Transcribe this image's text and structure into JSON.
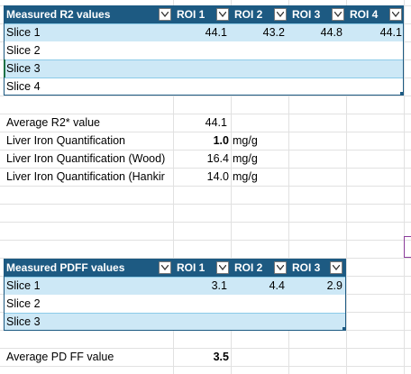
{
  "r2_table": {
    "header": {
      "title": "Measured R2 values",
      "cols": [
        "ROI 1",
        "ROI 2",
        "ROI 3",
        "ROI 4"
      ]
    },
    "rows": [
      {
        "label": "Slice 1",
        "values": [
          "44.1",
          "43.2",
          "44.8",
          "44.1"
        ]
      },
      {
        "label": "Slice 2",
        "values": [
          "",
          "",
          "",
          ""
        ]
      },
      {
        "label": "Slice 3",
        "values": [
          "",
          "",
          "",
          ""
        ]
      },
      {
        "label": "Slice 4",
        "values": [
          "",
          "",
          "",
          ""
        ]
      }
    ]
  },
  "results": [
    {
      "label": "Average R2* value",
      "value": "44.1",
      "unit": ""
    },
    {
      "label": "Liver Iron Quantification",
      "value": "1.0",
      "unit": "mg/g"
    },
    {
      "label": "Liver Iron Quantification (Wood)",
      "value": "16.4",
      "unit": "mg/g"
    },
    {
      "label": "Liver Iron Quantification (Hankir",
      "value": "14.0",
      "unit": "mg/g"
    }
  ],
  "pdff_table": {
    "header": {
      "title": "Measured PDFF values",
      "cols": [
        "ROI 1",
        "ROI 2",
        "ROI 3"
      ]
    },
    "rows": [
      {
        "label": "Slice 1",
        "values": [
          "3.1",
          "4.4",
          "2.9"
        ]
      },
      {
        "label": "Slice 2",
        "values": [
          "",
          "",
          ""
        ]
      },
      {
        "label": "Slice 3",
        "values": [
          "",
          "",
          ""
        ]
      }
    ]
  },
  "pdff_average": {
    "label": "Average PD FF value",
    "value": "3.5"
  },
  "icons": {
    "filter_dropdown": "chevron-down-icon"
  },
  "colors": {
    "header_bg": "#1d5a82",
    "band_bg": "#cde8f6",
    "band_border": "#8ccbe8",
    "selection": "#1e7145"
  }
}
